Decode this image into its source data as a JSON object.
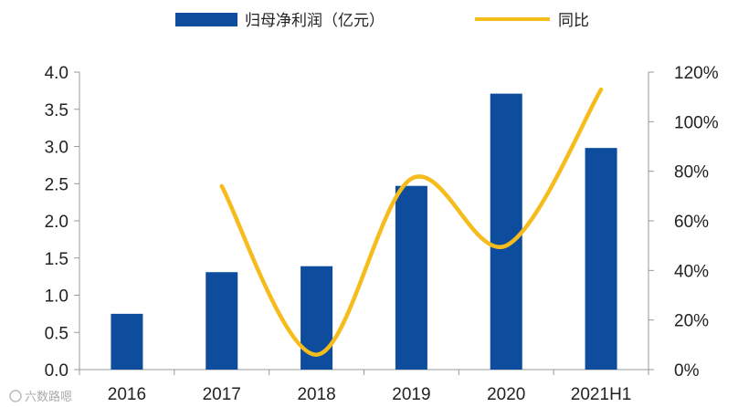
{
  "chart_data": {
    "type": "bar+line",
    "categories": [
      "2016",
      "2017",
      "2018",
      "2019",
      "2020",
      "2021H1"
    ],
    "series": [
      {
        "name": "归母净利润（亿元）",
        "type": "bar",
        "axis": "left",
        "values": [
          0.75,
          1.31,
          1.39,
          2.47,
          3.71,
          2.98
        ]
      },
      {
        "name": "同比",
        "type": "line",
        "axis": "right",
        "values": [
          null,
          74,
          6,
          77,
          50,
          113
        ]
      }
    ],
    "left_axis": {
      "ylim": [
        0,
        4.0
      ],
      "ticks": [
        "0.0",
        "0.5",
        "1.0",
        "1.5",
        "2.0",
        "2.5",
        "3.0",
        "3.5",
        "4.0"
      ]
    },
    "right_axis": {
      "ylim": [
        0,
        120
      ],
      "ticks": [
        "0%",
        "20%",
        "40%",
        "60%",
        "80%",
        "100%",
        "120%"
      ]
    },
    "legend_position": "top-center",
    "grid": false
  },
  "colors": {
    "bar": "#0e4d9e",
    "line": "#f5bc1c",
    "axis": "#999999"
  },
  "watermark": "六数路嗯"
}
